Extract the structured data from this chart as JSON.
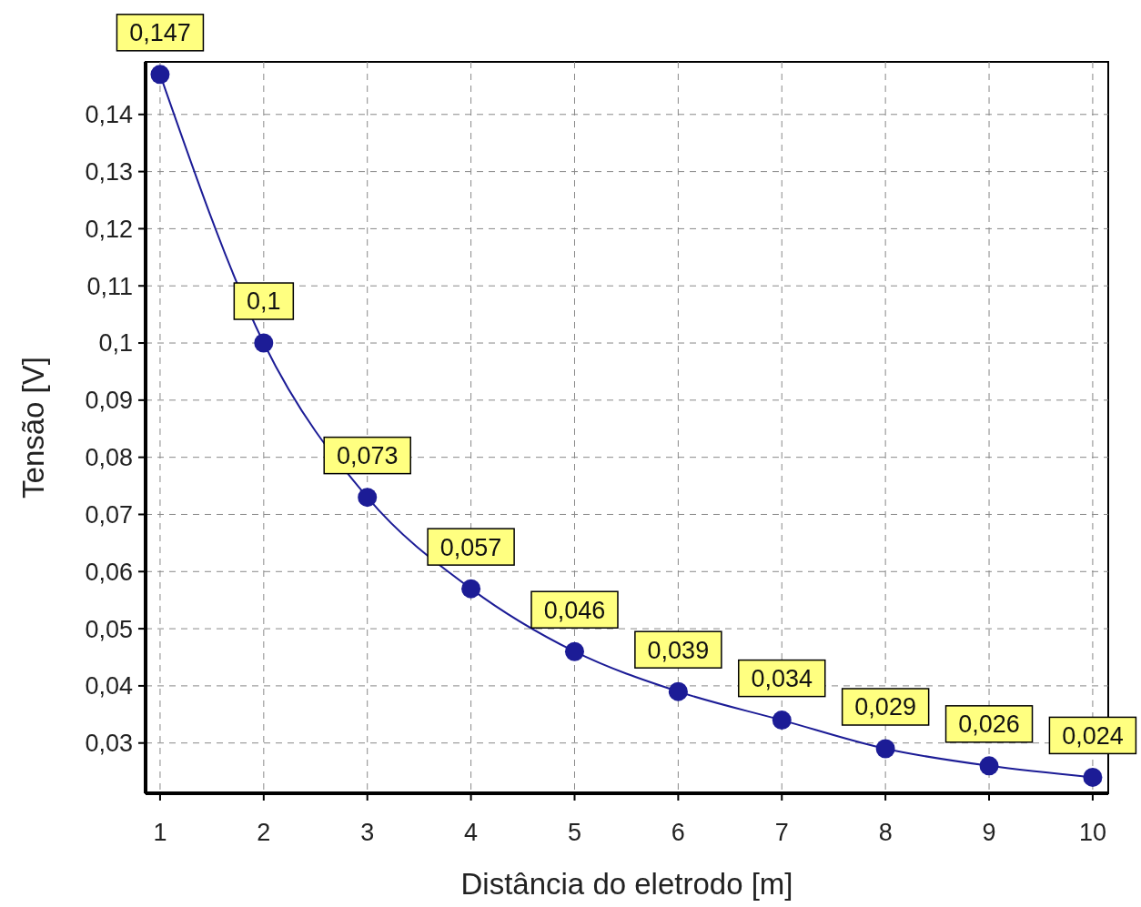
{
  "chart_data": {
    "type": "line",
    "xlabel": "Distância do eletrodo [m]",
    "ylabel": "Tensão [V]",
    "x": [
      1,
      2,
      3,
      4,
      5,
      6,
      7,
      8,
      9,
      10
    ],
    "series": [
      {
        "color": "#1c1c96",
        "values": [
          0.147,
          0.1,
          0.073,
          0.057,
          0.046,
          0.039,
          0.034,
          0.029,
          0.026,
          0.024
        ],
        "value_labels": [
          "0,147",
          "0,1",
          "0,073",
          "0,057",
          "0,046",
          "0,039",
          "0,034",
          "0,029",
          "0,026",
          "0,024"
        ]
      }
    ],
    "xlim": [
      0.86,
      10.15
    ],
    "ylim": [
      0.0212,
      0.1492
    ],
    "xticks": [
      1,
      2,
      3,
      4,
      5,
      6,
      7,
      8,
      9,
      10
    ],
    "yticks": [
      {
        "value": 0.03,
        "label": "0,03"
      },
      {
        "value": 0.04,
        "label": "0,04"
      },
      {
        "value": 0.05,
        "label": "0,05"
      },
      {
        "value": 0.06,
        "label": "0,06"
      },
      {
        "value": 0.07,
        "label": "0,07"
      },
      {
        "value": 0.08,
        "label": "0,08"
      },
      {
        "value": 0.09,
        "label": "0,09"
      },
      {
        "value": 0.1,
        "label": "0,1"
      },
      {
        "value": 0.11,
        "label": "0,11"
      },
      {
        "value": 0.12,
        "label": "0,12"
      },
      {
        "value": 0.13,
        "label": "0,13"
      },
      {
        "value": 0.14,
        "label": "0,14"
      }
    ],
    "grid": true,
    "marker": "circle",
    "line_style": "solid"
  }
}
